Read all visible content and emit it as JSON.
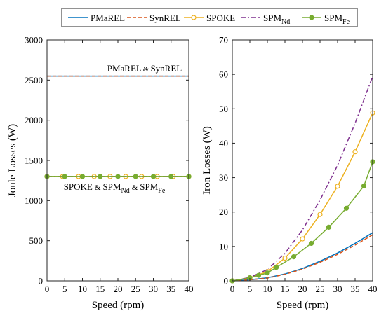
{
  "colors": {
    "PMaREL": "#0072BD",
    "SynREL": "#D95319",
    "SPOKE": "#EDB120",
    "SPM_Nd": "#7E2F8E",
    "SPM_Fe": "#77AC30"
  },
  "legend": {
    "position": "top",
    "entries": [
      {
        "key": "PMaREL",
        "base": "PMaREL",
        "sub": "",
        "style": "solid",
        "marker": "none"
      },
      {
        "key": "SynREL",
        "base": "SynREL",
        "sub": "",
        "style": "dashed",
        "marker": "none"
      },
      {
        "key": "SPOKE",
        "base": "SPOKE",
        "sub": "",
        "style": "solid",
        "marker": "open-circle"
      },
      {
        "key": "SPM_Nd",
        "base": "SPM",
        "sub": "Nd",
        "style": "dashdot",
        "marker": "none"
      },
      {
        "key": "SPM_Fe",
        "base": "SPM",
        "sub": "Fe",
        "style": "solid",
        "marker": "filled-circle"
      }
    ]
  },
  "annotations": {
    "left_top": {
      "a": "PMaREL",
      "amp": "&",
      "b": "SynREL"
    },
    "left_bottom": {
      "a": "SPOKE",
      "amp1": "&",
      "b": "SPM",
      "b_sub": "Nd",
      "amp2": "&",
      "c": "SPM",
      "c_sub": "Fe"
    }
  },
  "chart_data": [
    {
      "type": "line",
      "xlabel": "Speed (rpm)",
      "ylabel": "Joule Losses (W)",
      "xlim": [
        0,
        40
      ],
      "ylim": [
        0,
        3000
      ],
      "xticks": [
        0,
        5,
        10,
        15,
        20,
        25,
        30,
        35,
        40
      ],
      "yticks": [
        0,
        500,
        1000,
        1500,
        2000,
        2500,
        3000
      ],
      "grid": false,
      "series": [
        {
          "name": "PMaREL",
          "key": "PMaREL",
          "x": [
            0,
            40
          ],
          "y": [
            2550,
            2550
          ]
        },
        {
          "name": "SynREL",
          "key": "SynREL",
          "x": [
            0,
            40
          ],
          "y": [
            2550,
            2550
          ]
        },
        {
          "name": "SPOKE",
          "key": "SPOKE",
          "x": [
            0,
            4.4,
            8.9,
            13.3,
            17.8,
            22.2,
            26.7,
            31.1,
            35.6,
            40
          ],
          "y": [
            1300,
            1300,
            1300,
            1300,
            1300,
            1300,
            1300,
            1300,
            1300,
            1300
          ]
        },
        {
          "name": "SPM_Nd",
          "key": "SPM_Nd",
          "x": [
            0,
            40
          ],
          "y": [
            1300,
            1300
          ]
        },
        {
          "name": "SPM_Fe",
          "key": "SPM_Fe",
          "x": [
            0,
            5,
            10,
            15,
            20,
            25,
            30,
            35,
            40
          ],
          "y": [
            1300,
            1300,
            1300,
            1300,
            1300,
            1300,
            1300,
            1300,
            1300
          ]
        }
      ]
    },
    {
      "type": "line",
      "xlabel": "Speed (rpm)",
      "ylabel": "Iron Losses (W)",
      "xlim": [
        0,
        40
      ],
      "ylim": [
        0,
        70
      ],
      "xticks": [
        0,
        5,
        10,
        15,
        20,
        25,
        30,
        35,
        40
      ],
      "yticks": [
        0,
        10,
        20,
        30,
        40,
        50,
        60,
        70
      ],
      "grid": false,
      "series": [
        {
          "name": "PMaREL",
          "key": "PMaREL",
          "x": [
            0,
            5,
            10,
            15,
            20,
            25,
            30,
            35,
            40
          ],
          "y": [
            0,
            0.3,
            0.9,
            2.0,
            3.6,
            5.7,
            8.1,
            10.9,
            14.0
          ]
        },
        {
          "name": "SynREL",
          "key": "SynREL",
          "x": [
            0,
            5,
            10,
            15,
            20,
            25,
            30,
            35,
            40
          ],
          "y": [
            0,
            0.3,
            0.8,
            1.9,
            3.4,
            5.4,
            7.7,
            10.4,
            13.4
          ]
        },
        {
          "name": "SPOKE",
          "key": "SPOKE",
          "x": [
            0,
            5,
            10,
            15,
            20,
            25,
            30,
            35,
            40
          ],
          "y": [
            0,
            0.9,
            2.7,
            6.6,
            12.2,
            19.3,
            27.5,
            37.5,
            48.8
          ]
        },
        {
          "name": "SPM_Nd",
          "key": "SPM_Nd",
          "x": [
            0,
            5,
            10,
            15,
            20,
            25,
            30,
            35,
            40
          ],
          "y": [
            0,
            1.0,
            3.3,
            8.0,
            14.8,
            23.5,
            33.6,
            45.8,
            59.4
          ]
        },
        {
          "name": "SPM_Fe",
          "key": "SPM_Fe",
          "x": [
            0,
            5,
            7.5,
            10,
            12.5,
            17.5,
            22.5,
            27.5,
            32.5,
            37.5,
            40
          ],
          "y": [
            0,
            0.9,
            1.6,
            2.3,
            3.9,
            7.0,
            10.9,
            15.6,
            21.1,
            27.6,
            34.6
          ]
        }
      ]
    }
  ]
}
